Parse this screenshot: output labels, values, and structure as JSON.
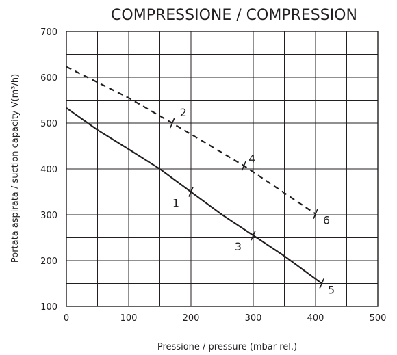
{
  "chart_data": {
    "type": "line",
    "title": "COMPRESSIONE /  COMPRESSION",
    "xlabel": "Pressione / pressure (mbar rel.)",
    "ylabel": "Portata aspirata / suction capacity V(m³/h)",
    "xlim": [
      0,
      500
    ],
    "ylim": [
      100,
      700
    ],
    "x_ticks": [
      0,
      100,
      200,
      300,
      400,
      500
    ],
    "y_ticks": [
      100,
      200,
      300,
      400,
      500,
      600,
      700
    ],
    "x_grid_step": 50,
    "y_grid_step": 50,
    "grid": true,
    "series": [
      {
        "style": "solid",
        "x": [
          0,
          50,
          100,
          150,
          200,
          250,
          300,
          350,
          410
        ],
        "y": [
          533,
          485,
          443,
          400,
          350,
          300,
          255,
          210,
          150
        ]
      },
      {
        "style": "dashed",
        "x": [
          0,
          100,
          170,
          285,
          400
        ],
        "y": [
          623,
          555,
          500,
          407,
          302
        ]
      }
    ],
    "annotations": [
      {
        "label": "1",
        "x": 200,
        "y": 350
      },
      {
        "label": "2",
        "x": 170,
        "y": 500
      },
      {
        "label": "3",
        "x": 300,
        "y": 255
      },
      {
        "label": "4",
        "x": 285,
        "y": 407
      },
      {
        "label": "5",
        "x": 410,
        "y": 150
      },
      {
        "label": "6",
        "x": 400,
        "y": 302
      }
    ]
  }
}
